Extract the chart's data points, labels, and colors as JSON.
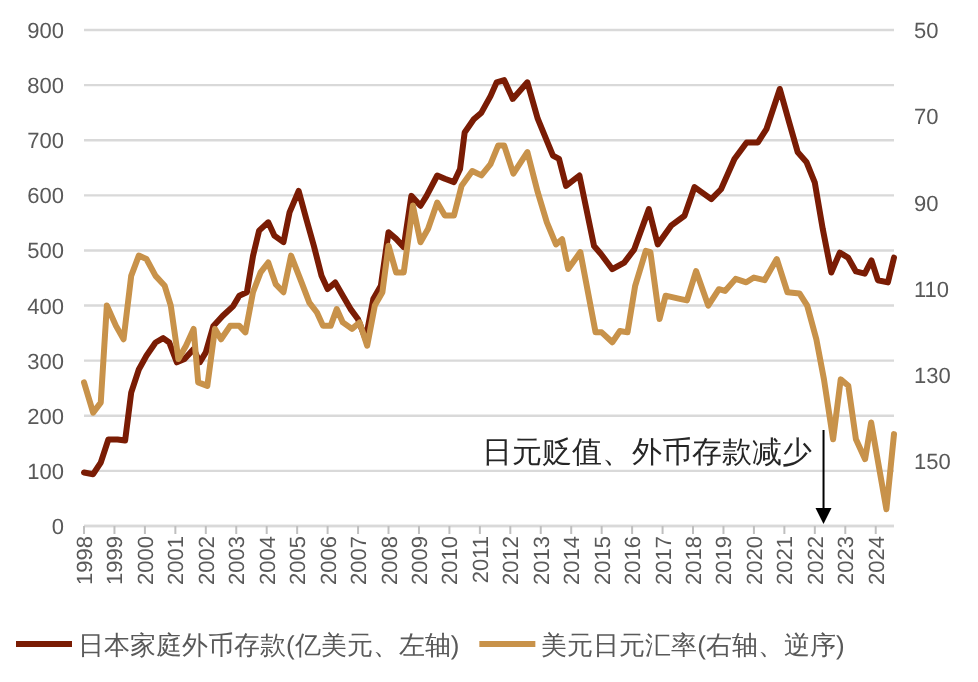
{
  "chart_data": {
    "type": "line",
    "xlim": [
      1998,
      2024.6
    ],
    "xticks": [
      1998,
      1999,
      2000,
      2001,
      2002,
      2003,
      2004,
      2005,
      2006,
      2007,
      2008,
      2009,
      2010,
      2011,
      2012,
      2013,
      2014,
      2015,
      2016,
      2017,
      2018,
      2019,
      2020,
      2021,
      2022,
      2023,
      2024
    ],
    "ylim": [
      0,
      900
    ],
    "yticks": [
      0,
      100,
      200,
      300,
      400,
      500,
      600,
      700,
      800,
      900
    ],
    "y2lim": [
      165,
      50
    ],
    "y2ticks": [
      50,
      70,
      90,
      110,
      130,
      150
    ],
    "grid": "y",
    "legend": "bottom",
    "series": [
      {
        "name": "日本家庭外币存款(亿美元、左轴)",
        "color": "#7a1c04",
        "x": [
          1998,
          1998.3,
          1998.55,
          1998.8,
          1999.1,
          1999.35,
          1999.55,
          1999.8,
          2000.05,
          2000.35,
          2000.6,
          2000.8,
          2001.05,
          2001.3,
          2001.6,
          2001.8,
          2002.0,
          2002.25,
          2002.55,
          2002.9,
          2003.1,
          2003.35,
          2003.55,
          2003.75,
          2004.05,
          2004.25,
          2004.55,
          2004.75,
          2005.05,
          2005.3,
          2005.55,
          2005.8,
          2006.0,
          2006.25,
          2006.5,
          2006.75,
          2007.0,
          2007.25,
          2007.5,
          2007.75,
          2008.0,
          2008.25,
          2008.5,
          2008.75,
          2009.05,
          2009.25,
          2009.6,
          2009.85,
          2010.15,
          2010.35,
          2010.5,
          2010.8,
          2011.05,
          2011.35,
          2011.55,
          2011.8,
          2012.08,
          2012.56,
          2012.9,
          2013.4,
          2013.6,
          2013.83,
          2014.27,
          2014.75,
          2014.97,
          2015.35,
          2015.74,
          2016.07,
          2016.55,
          2016.84,
          2017.28,
          2017.72,
          2018.05,
          2018.6,
          2018.92,
          2019.36,
          2019.76,
          2020.13,
          2020.41,
          2020.85,
          2021.16,
          2021.44,
          2021.73,
          2022.0,
          2022.26,
          2022.54,
          2022.82,
          2023.09,
          2023.35,
          2023.64,
          2023.86,
          2024.07,
          2024.4,
          2024.6
        ],
        "values": [
          97,
          94,
          115,
          157,
          157,
          155,
          242,
          284,
          309,
          333,
          341,
          333,
          297,
          303,
          321,
          297,
          315,
          363,
          381,
          399,
          418,
          424,
          490,
          536,
          551,
          527,
          515,
          569,
          608,
          557,
          508,
          454,
          430,
          442,
          418,
          394,
          375,
          339,
          412,
          436,
          533,
          521,
          506,
          599,
          581,
          599,
          636,
          630,
          624,
          648,
          714,
          738,
          750,
          780,
          805,
          809,
          775,
          805,
          739,
          672,
          666,
          617,
          636,
          508,
          494,
          466,
          478,
          502,
          575,
          511,
          545,
          563,
          615,
          593,
          611,
          666,
          696,
          696,
          720,
          793,
          732,
          678,
          660,
          623,
          539,
          460,
          496,
          487,
          462,
          458,
          482,
          446,
          442,
          487
        ]
      },
      {
        "name": "美元日元汇率(右轴、逆序)",
        "color": "#c8924a",
        "axis": "y2",
        "x": [
          1998,
          1998.3,
          1998.55,
          1998.75,
          1999.05,
          1999.3,
          1999.55,
          1999.8,
          2000.05,
          2000.35,
          2000.65,
          2000.85,
          2001.1,
          2001.35,
          2001.6,
          2001.75,
          2002.05,
          2002.3,
          2002.5,
          2002.8,
          2003.1,
          2003.3,
          2003.55,
          2003.8,
          2004.05,
          2004.3,
          2004.55,
          2004.8,
          2005.1,
          2005.4,
          2005.65,
          2005.85,
          2006.1,
          2006.3,
          2006.5,
          2006.8,
          2007.05,
          2007.3,
          2007.55,
          2007.8,
          2008.0,
          2008.25,
          2008.5,
          2008.8,
          2009.05,
          2009.3,
          2009.6,
          2009.85,
          2010.15,
          2010.4,
          2010.75,
          2011.05,
          2011.35,
          2011.6,
          2011.8,
          2012.1,
          2012.56,
          2012.9,
          2013.2,
          2013.5,
          2013.7,
          2013.9,
          2014.3,
          2014.8,
          2015.0,
          2015.35,
          2015.6,
          2015.85,
          2016.1,
          2016.45,
          2016.6,
          2016.9,
          2017.1,
          2017.6,
          2017.8,
          2018.1,
          2018.5,
          2018.85,
          2019.05,
          2019.4,
          2019.75,
          2020.0,
          2020.35,
          2020.75,
          2021.1,
          2021.5,
          2021.75,
          2022.05,
          2022.3,
          2022.6,
          2022.85,
          2023.1,
          2023.35,
          2023.65,
          2023.85,
          2024.1,
          2024.35,
          2024.6
        ],
        "values": [
          131.7,
          138.7,
          136.4,
          113.9,
          118.6,
          121.7,
          107,
          102.3,
          103.1,
          107,
          109.3,
          113.9,
          126.3,
          123.2,
          119.3,
          131.7,
          132.5,
          119.3,
          121.7,
          118.6,
          118.6,
          120.1,
          110.8,
          106.2,
          103.9,
          109,
          110.8,
          102.3,
          107.7,
          113.2,
          115.5,
          118.6,
          118.6,
          114.7,
          117.8,
          119.3,
          117.8,
          123.2,
          113.9,
          110.8,
          100,
          106.2,
          106.2,
          90.7,
          99.2,
          96.1,
          90,
          93,
          93,
          86.1,
          82.7,
          83.7,
          81.1,
          76.8,
          76.8,
          83.3,
          78.3,
          87.6,
          94.6,
          99.7,
          98.5,
          105.4,
          101.5,
          120.1,
          120.1,
          122.4,
          119.8,
          120.1,
          109.3,
          101.2,
          101.5,
          117,
          111.6,
          112.4,
          112.7,
          105.9,
          113.9,
          110.1,
          110.5,
          107.7,
          108.5,
          107.4,
          108,
          103.1,
          110.8,
          111.1,
          113.9,
          121.7,
          131,
          144.9,
          131,
          132.5,
          144.9,
          149.5,
          141,
          151.1,
          161.1,
          143.7
        ]
      }
    ],
    "annotations": [
      "日元贬值、外币存款减少"
    ]
  }
}
